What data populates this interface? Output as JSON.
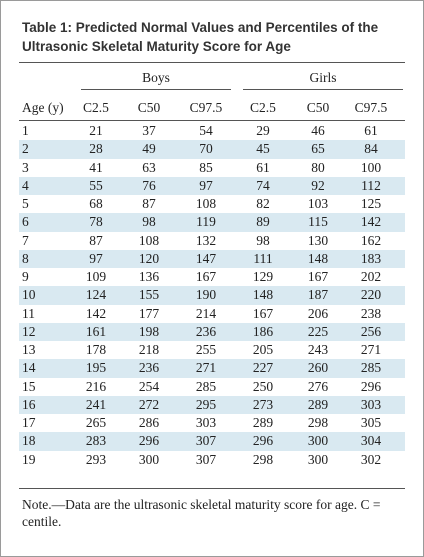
{
  "title": "Table 1: Predicted Normal Values and Percentiles of the Ultrasonic Skeletal Maturity Score for Age",
  "table": {
    "groups": [
      "Boys",
      "Girls"
    ],
    "header": [
      "Age (y)",
      "C2.5",
      "C50",
      "C97.5",
      "C2.5",
      "C50",
      "C97.5"
    ],
    "rows": [
      [
        1,
        21,
        37,
        54,
        29,
        46,
        61
      ],
      [
        2,
        28,
        49,
        70,
        45,
        65,
        84
      ],
      [
        3,
        41,
        63,
        85,
        61,
        80,
        100
      ],
      [
        4,
        55,
        76,
        97,
        74,
        92,
        112
      ],
      [
        5,
        68,
        87,
        108,
        82,
        103,
        125
      ],
      [
        6,
        78,
        98,
        119,
        89,
        115,
        142
      ],
      [
        7,
        87,
        108,
        132,
        98,
        130,
        162
      ],
      [
        8,
        97,
        120,
        147,
        111,
        148,
        183
      ],
      [
        9,
        109,
        136,
        167,
        129,
        167,
        202
      ],
      [
        10,
        124,
        155,
        190,
        148,
        187,
        220
      ],
      [
        11,
        142,
        177,
        214,
        167,
        206,
        238
      ],
      [
        12,
        161,
        198,
        236,
        186,
        225,
        256
      ],
      [
        13,
        178,
        218,
        255,
        205,
        243,
        271
      ],
      [
        14,
        195,
        236,
        271,
        227,
        260,
        285
      ],
      [
        15,
        216,
        254,
        285,
        250,
        276,
        296
      ],
      [
        16,
        241,
        272,
        295,
        273,
        289,
        303
      ],
      [
        17,
        265,
        286,
        303,
        289,
        298,
        305
      ],
      [
        18,
        283,
        296,
        307,
        296,
        300,
        304
      ],
      [
        19,
        293,
        300,
        307,
        298,
        300,
        302
      ]
    ]
  },
  "note": "Note.—Data are the ultrasonic skeletal maturity score for age. C = centile."
}
